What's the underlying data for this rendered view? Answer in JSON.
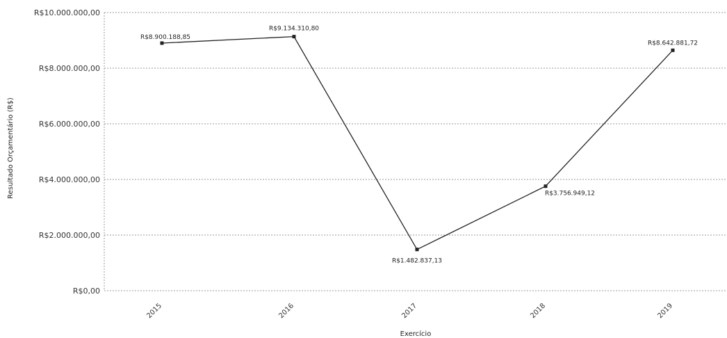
{
  "chart_data": {
    "type": "line",
    "title": "",
    "xlabel": "Exercício",
    "ylabel": "Resultado Orçamentário (R$)",
    "categories": [
      "2015",
      "2016",
      "2017",
      "2018",
      "2019"
    ],
    "series": [
      {
        "values": [
          8900188.85,
          9134310.8,
          1482837.13,
          3756949.12,
          8642881.72
        ],
        "labels": [
          "R$8.900.188,85",
          "R$9.134.310,80",
          "R$1.482.837,13",
          "R$3.756.949,12",
          "R$8.642.881,72"
        ]
      }
    ],
    "yticks": [
      0,
      2000000,
      4000000,
      6000000,
      8000000,
      10000000
    ],
    "ytick_labels": [
      "R$0,00",
      "R$2.000.000,00",
      "R$4.000.000,00",
      "R$6.000.000,00",
      "R$8.000.000,00",
      "R$10.000.000,00"
    ],
    "ylim": [
      0,
      10000000
    ],
    "grid": true,
    "legend": "none",
    "line_color": "#222222"
  }
}
